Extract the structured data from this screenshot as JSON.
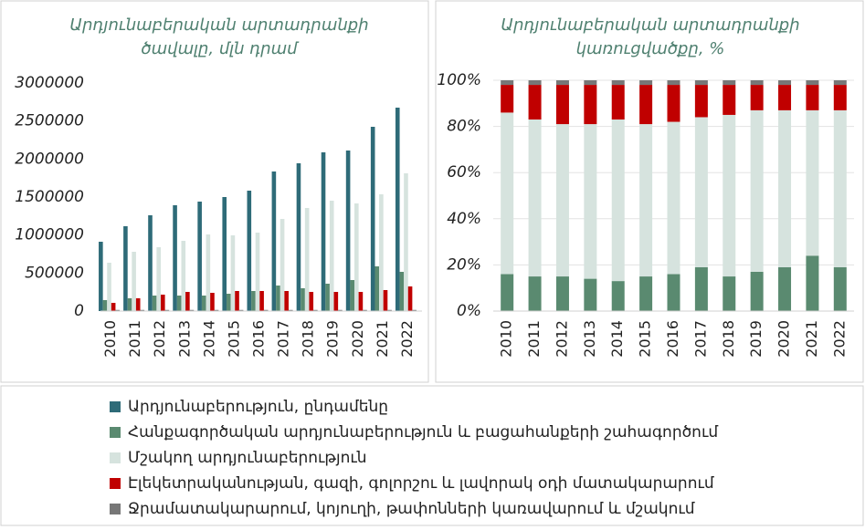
{
  "chart_data": [
    {
      "type": "bar",
      "title": [
        "Արդյունաբերական արտադրանքի",
        "ծավալը, մլն դրամ"
      ],
      "categories": [
        "2010",
        "2011",
        "2012",
        "2013",
        "2014",
        "2015",
        "2016",
        "2017",
        "2018",
        "2019",
        "2020",
        "2021",
        "2022"
      ],
      "ylim": [
        0,
        3000000
      ],
      "yticks": [
        0,
        500000,
        1000000,
        1500000,
        2000000,
        2500000,
        3000000
      ],
      "series": [
        {
          "name": "Արդյունաբերություն, ընդամենը",
          "color": "#2e6b78",
          "values": [
            912000,
            1116000,
            1260000,
            1392000,
            1440000,
            1500000,
            1584000,
            1836000,
            1944000,
            2088000,
            2112000,
            2424000,
            2676000
          ]
        },
        {
          "name": "Հանքագործական արդյունաբերություն և բացահանքերի շահագործում",
          "color": "#5a8a70",
          "values": [
            144000,
            168000,
            204000,
            204000,
            204000,
            228000,
            264000,
            336000,
            300000,
            360000,
            408000,
            588000,
            516000
          ]
        },
        {
          "name": "Մշակող արդյունաբերություն",
          "color": "#d6e3de",
          "values": [
            636000,
            780000,
            840000,
            924000,
            1008000,
            996000,
            1032000,
            1212000,
            1356000,
            1452000,
            1416000,
            1536000,
            1812000
          ]
        },
        {
          "name": "Էլեկետրականության, գազի, գոլորշու և լավորակ օդի մատակարարում",
          "color": "#c00000",
          "values": [
            108000,
            168000,
            216000,
            252000,
            240000,
            264000,
            264000,
            264000,
            252000,
            252000,
            252000,
            276000,
            324000
          ]
        },
        {
          "name": "Ջրամատակարարում, կոյուղի, թափոնների կառավարում և մշակում",
          "color": "#777777",
          "values": [
            15000,
            15000,
            15000,
            15000,
            15000,
            15000,
            15000,
            15000,
            15000,
            15000,
            15000,
            15000,
            15000
          ]
        }
      ]
    },
    {
      "type": "stacked_bar",
      "title": [
        "Արդյունաբերական արտադրանքի",
        "կառուցվածքը, %"
      ],
      "categories": [
        "2010",
        "2011",
        "2012",
        "2013",
        "2014",
        "2015",
        "2016",
        "2017",
        "2018",
        "2019",
        "2020",
        "2021",
        "2022"
      ],
      "ylim": [
        0,
        100
      ],
      "yticks": [
        {
          "value": 0,
          "label": "0%"
        },
        {
          "value": 20,
          "label": "20%"
        },
        {
          "value": 40,
          "label": "40%"
        },
        {
          "value": 60,
          "label": "60%"
        },
        {
          "value": 80,
          "label": "80%"
        },
        {
          "value": 100,
          "label": "100%"
        }
      ],
      "series": [
        {
          "name": "Հանքագործական արդյունաբերություն և բացահանքերի շահագործում",
          "color": "#5a8a70",
          "values": [
            16,
            15,
            15,
            14,
            13,
            15,
            16,
            19,
            15,
            17,
            19,
            24,
            19
          ]
        },
        {
          "name": "Մշակող արդյունաբերություն",
          "color": "#d6e3de",
          "values": [
            70,
            68,
            66,
            67,
            70,
            66,
            66,
            65,
            70,
            70,
            68,
            63,
            68
          ]
        },
        {
          "name": "Էլեկետրականության, գազի, գոլորշու և լավորակ օդի մատակարարում",
          "color": "#c00000",
          "values": [
            12,
            15,
            17,
            17,
            15,
            17,
            16,
            14,
            13,
            11,
            11,
            11,
            11
          ]
        },
        {
          "name": "Ջրամատակարարում, կոյուղի, թափոնների կառավարում և մշակում",
          "color": "#777777",
          "values": [
            2,
            2,
            2,
            2,
            2,
            2,
            2,
            2,
            2,
            2,
            2,
            2,
            2
          ]
        }
      ]
    }
  ]
}
